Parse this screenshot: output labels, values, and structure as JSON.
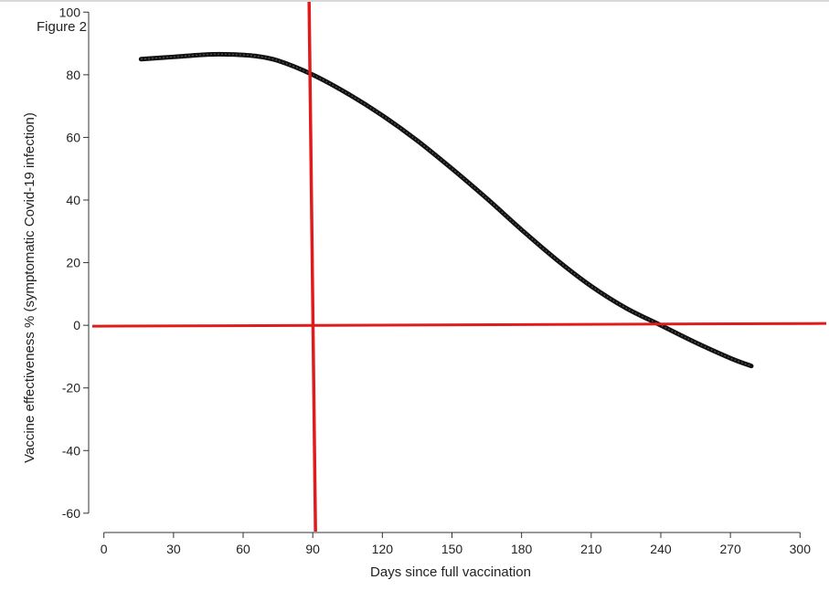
{
  "figure_label": "Figure 2",
  "colors": {
    "curve": "#111111",
    "reference": "#e01b1b",
    "axis": "#333333"
  },
  "chart_data": {
    "type": "line",
    "xlabel": "Days since full vaccination",
    "ylabel": "Vaccine effectiveness % (symptomatic Covid-19 infection)",
    "xlim": [
      -5,
      305
    ],
    "ylim": [
      -65,
      103
    ],
    "xticks": [
      0,
      30,
      60,
      90,
      120,
      150,
      180,
      210,
      240,
      270,
      300
    ],
    "yticks": [
      100,
      80,
      60,
      40,
      20,
      0,
      -20,
      -40,
      -60
    ],
    "grid": false,
    "series": [
      {
        "x": [
          16,
          30,
          45,
          55,
          65,
          75,
          90,
          105,
          120,
          135,
          150,
          165,
          180,
          195,
          210,
          225,
          240,
          255,
          270,
          279
        ],
        "y": [
          85,
          85.7,
          86.5,
          86.5,
          86,
          84.5,
          80,
          74,
          67,
          59,
          50,
          40.5,
          30.5,
          21,
          12.5,
          5.5,
          0,
          -5.5,
          -10.5,
          -13
        ]
      }
    ],
    "reference_lines": [
      {
        "axis": "x",
        "value": 90
      },
      {
        "axis": "y",
        "value": 0
      }
    ]
  }
}
